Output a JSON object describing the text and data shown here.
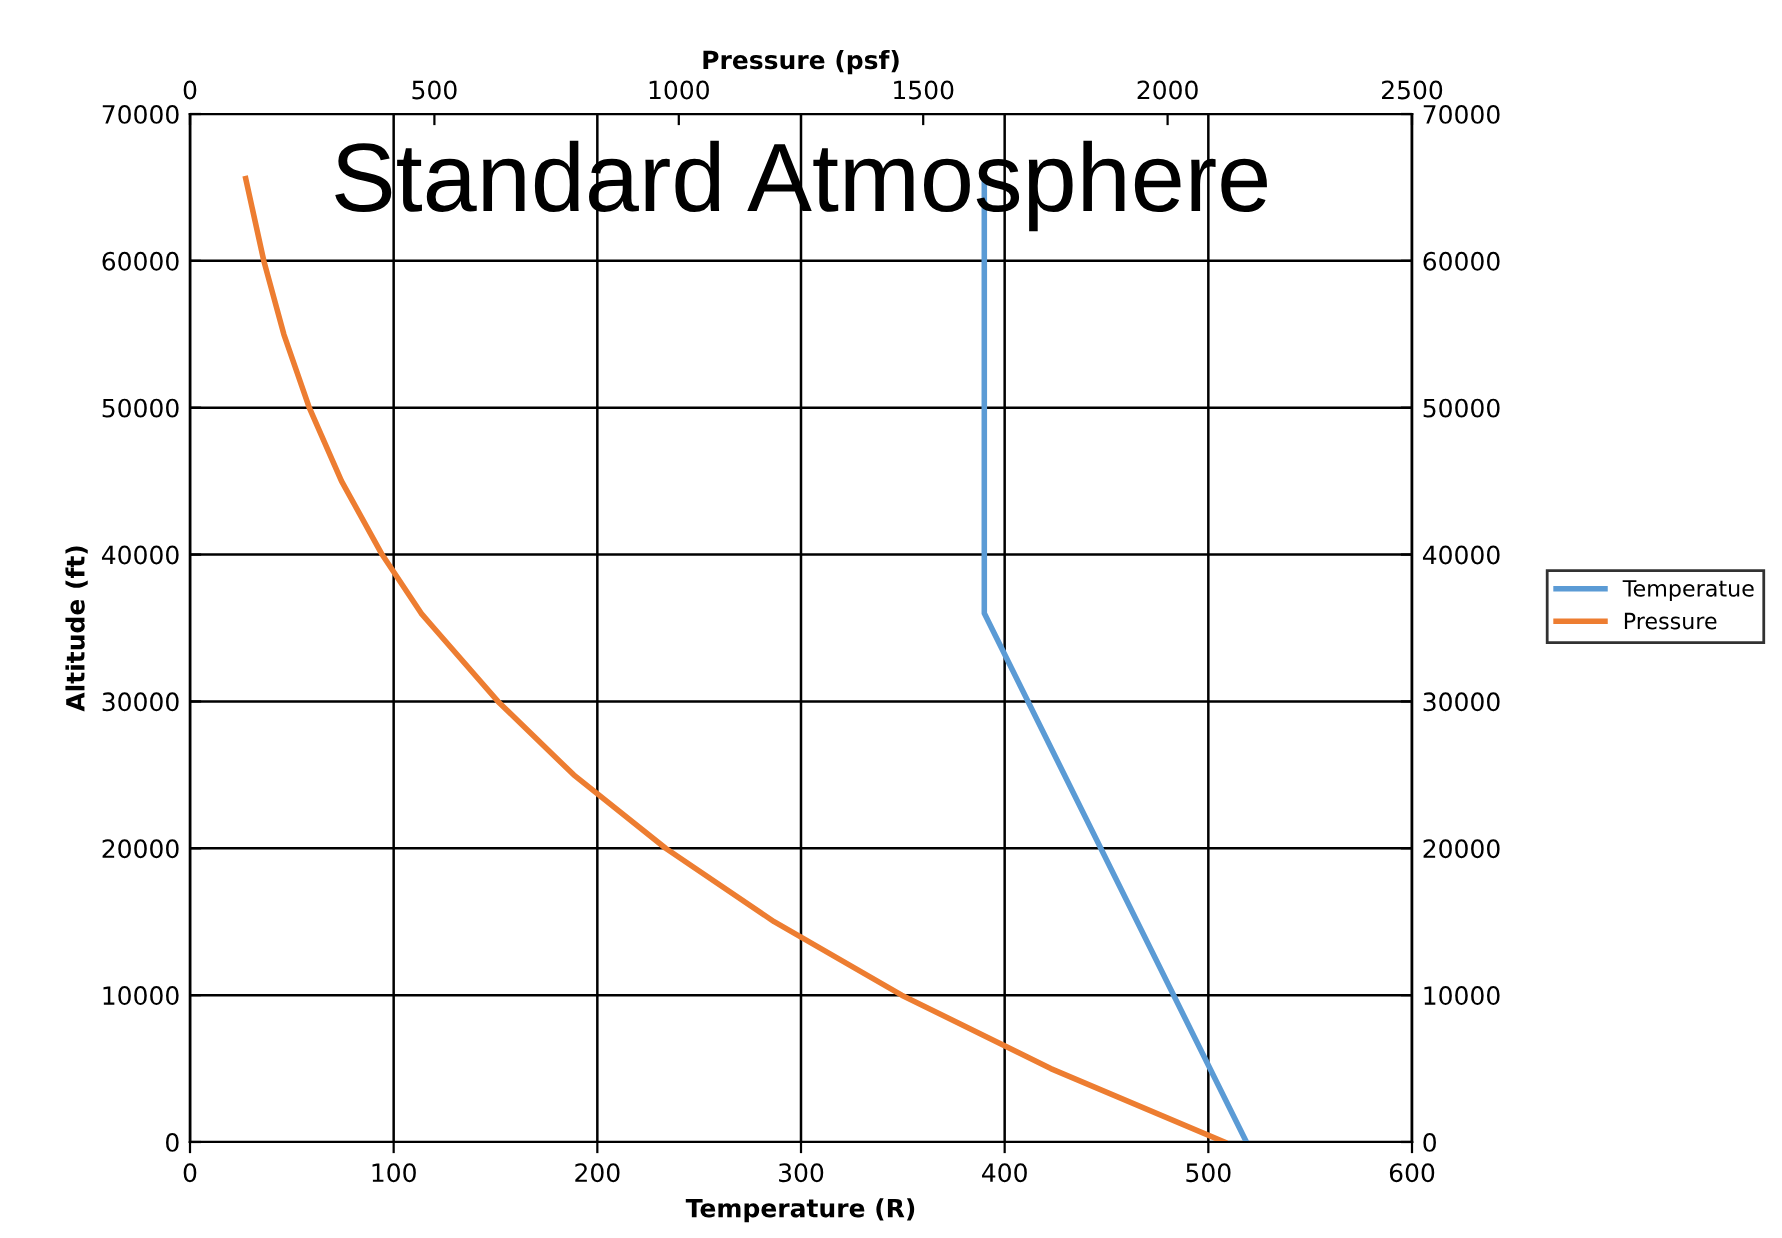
{
  "chart_data": {
    "type": "line",
    "title": "Standard Atmosphere",
    "xlabel": "Temperature (R)",
    "x2label": "Pressure (psf)",
    "ylabel": "Altitude (ft)",
    "xlim": [
      0,
      600
    ],
    "xticks": [
      0,
      100,
      200,
      300,
      400,
      500,
      600
    ],
    "x2lim": [
      0,
      2500
    ],
    "x2ticks": [
      0,
      500,
      1000,
      1500,
      2000,
      2500
    ],
    "ylim": [
      0,
      70000
    ],
    "yticks": [
      0,
      10000,
      20000,
      30000,
      40000,
      50000,
      60000,
      70000
    ],
    "y2lim": [
      0,
      70000
    ],
    "y2ticks": [
      0,
      10000,
      20000,
      30000,
      40000,
      50000,
      60000,
      70000
    ],
    "grid": true,
    "legend": "right",
    "marker": "none",
    "line_style": "solid",
    "series": [
      {
        "name": "Temperatue",
        "color": "#5b9bd5",
        "x": [
          518.7,
          390.0,
          390.0
        ],
        "values": [
          0,
          36000,
          65600
        ]
      },
      {
        "name": "Pressure",
        "color": "#ed7d31",
        "axis": "x2",
        "x": [
          2116,
          1761,
          1456,
          1195,
          973,
          785,
          630,
          499,
          473,
          393,
          310,
          244,
          192,
          151,
          114
        ],
        "values": [
          0,
          5000,
          10000,
          15000,
          20000,
          25000,
          30000,
          35000,
          36000,
          40000,
          45000,
          50000,
          55000,
          60000,
          65600
        ]
      }
    ]
  }
}
